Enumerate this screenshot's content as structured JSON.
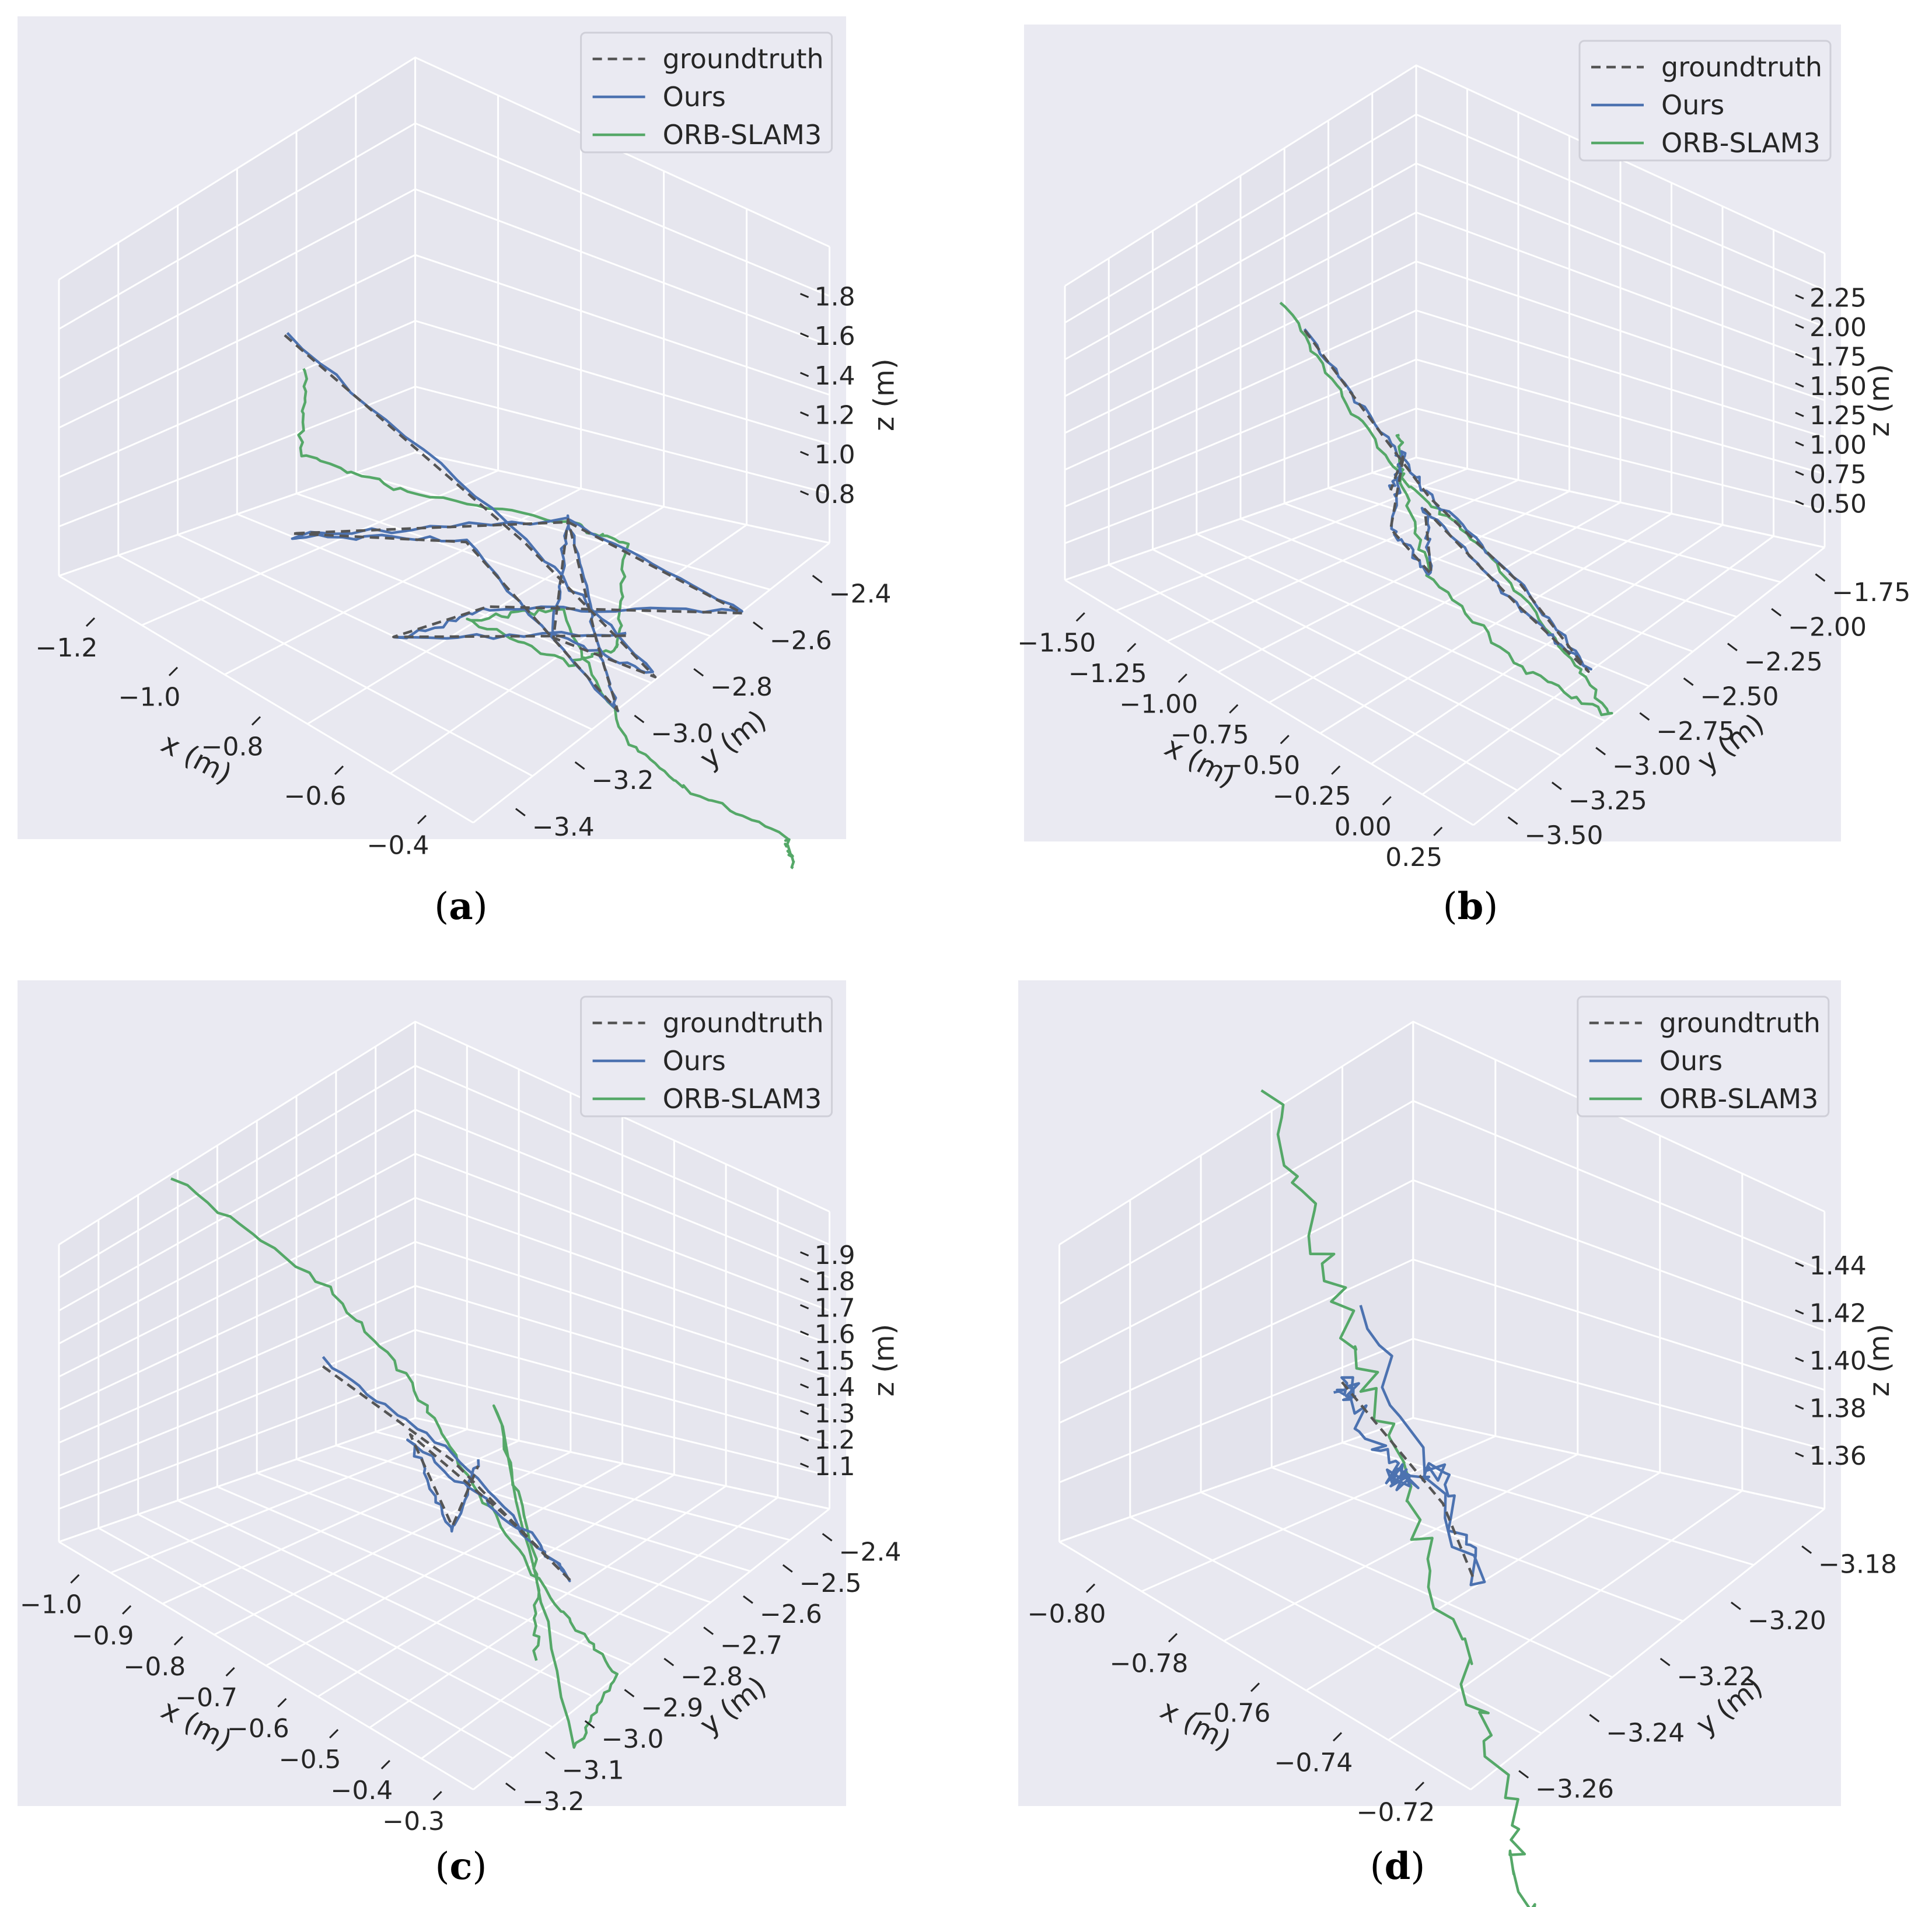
{
  "chart_data": [
    {
      "type": "line3d",
      "caption": "a",
      "grid": true,
      "legend": {
        "position": "top-right",
        "entries": [
          "groundtruth",
          "Ours",
          "ORB-SLAM3"
        ]
      },
      "xlabel": "x (m)",
      "ylabel": "y (m)",
      "zlabel": "z (m)",
      "x_ticks": [
        "−1.2",
        "−1.0",
        "−0.8",
        "−0.6",
        "−0.4"
      ],
      "y_ticks": [
        "−2.4",
        "−2.6",
        "−2.8",
        "−3.0",
        "−3.2",
        "−3.4"
      ],
      "z_ticks": [
        "1.8",
        "1.6",
        "1.4",
        "1.2",
        "1.0",
        "0.8"
      ],
      "xlim": [
        -1.3,
        -0.35
      ],
      "ylim": [
        -3.45,
        -2.35
      ],
      "zlim": [
        0.75,
        1.9
      ],
      "series": [
        {
          "name": "groundtruth",
          "color": "#555555",
          "dash": true,
          "points": [
            [
              -1.15,
              -2.9,
              1.62
            ],
            [
              -0.6,
              -2.9,
              1.37
            ],
            [
              -0.3,
              -2.9,
              1.15
            ],
            [
              -0.4,
              -2.7,
              1.28
            ],
            [
              -0.4,
              -2.75,
              1.72
            ],
            [
              -0.4,
              -2.85,
              1.2
            ],
            [
              -0.42,
              -2.95,
              0.88
            ],
            [
              -0.6,
              -2.7,
              1.45
            ],
            [
              -1.0,
              -2.7,
              1.08
            ],
            [
              -0.5,
              -2.9,
              1.55
            ],
            [
              -0.1,
              -2.9,
              1.6
            ],
            [
              -0.55,
              -2.7,
              1.25
            ],
            [
              -0.7,
              -2.6,
              1.02
            ],
            [
              -0.3,
              -2.8,
              1.35
            ]
          ]
        },
        {
          "name": "Ours",
          "color": "#4c72b0",
          "dash": false,
          "points": [
            [
              -1.15,
              -2.9,
              1.63
            ],
            [
              -0.6,
              -2.9,
              1.38
            ],
            [
              -0.3,
              -2.9,
              1.16
            ],
            [
              -0.4,
              -2.7,
              1.29
            ],
            [
              -0.4,
              -2.75,
              1.73
            ],
            [
              -0.4,
              -2.85,
              1.21
            ],
            [
              -0.42,
              -2.95,
              0.87
            ],
            [
              -0.6,
              -2.7,
              1.46
            ],
            [
              -1.0,
              -2.7,
              1.07
            ],
            [
              -0.5,
              -2.9,
              1.56
            ],
            [
              -0.1,
              -2.9,
              1.61
            ],
            [
              -0.55,
              -2.7,
              1.24
            ],
            [
              -0.7,
              -2.6,
              1.01
            ],
            [
              -0.3,
              -2.8,
              1.36
            ]
          ]
        },
        {
          "name": "ORB-SLAM3",
          "color": "#55a868",
          "dash": false,
          "points": [
            [
              -1.1,
              -2.9,
              1.55
            ],
            [
              -1.05,
              -2.8,
              1.3
            ],
            [
              -0.8,
              -2.8,
              1.4
            ],
            [
              -0.5,
              -2.9,
              1.55
            ],
            [
              -0.3,
              -2.8,
              1.7
            ],
            [
              -0.25,
              -2.7,
              1.4
            ],
            [
              -0.5,
              -2.9,
              1.0
            ],
            [
              -0.6,
              -2.7,
              1.15
            ],
            [
              -0.45,
              -2.8,
              1.3
            ],
            [
              -0.3,
              -2.8,
              0.95
            ],
            [
              -0.1,
              -2.7,
              1.0
            ],
            [
              0.2,
              -2.6,
              1.15
            ],
            [
              0.25,
              -2.55,
              1.1
            ]
          ]
        }
      ]
    },
    {
      "type": "line3d",
      "caption": "b",
      "grid": true,
      "legend": {
        "position": "top-right",
        "entries": [
          "groundtruth",
          "Ours",
          "ORB-SLAM3"
        ]
      },
      "xlabel": "x (m)",
      "ylabel": "y (m)",
      "zlabel": "z (m)",
      "x_ticks": [
        "−1.50",
        "−1.25",
        "−1.00",
        "−0.75",
        "−0.50",
        "−0.25",
        "0.00",
        "0.25"
      ],
      "y_ticks": [
        "−1.75",
        "−2.00",
        "−2.25",
        "−2.50",
        "−2.75",
        "−3.00",
        "−3.25",
        "−3.50"
      ],
      "z_ticks": [
        "2.25",
        "2.00",
        "1.75",
        "1.50",
        "1.25",
        "1.00",
        "0.75",
        "0.50"
      ],
      "xlim": [
        -1.6,
        0.3
      ],
      "ylim": [
        -3.55,
        -1.7
      ],
      "zlim": [
        0.4,
        2.3
      ],
      "series": [
        {
          "name": "groundtruth",
          "color": "#555555",
          "dash": true,
          "points": [
            [
              -1.2,
              -2.6,
              2.0
            ],
            [
              -0.9,
              -2.7,
              1.5
            ],
            [
              -0.7,
              -2.7,
              1.3
            ],
            [
              -0.2,
              -2.6,
              1.2
            ],
            [
              0.2,
              -2.5,
              1.0
            ],
            [
              -0.3,
              -2.7,
              0.95
            ],
            [
              -0.8,
              -2.8,
              1.1
            ],
            [
              -0.85,
              -2.9,
              0.6
            ],
            [
              -0.8,
              -2.6,
              1.05
            ],
            [
              -0.5,
              -2.3,
              1.9
            ],
            [
              -0.8,
              -2.6,
              1.3
            ]
          ]
        },
        {
          "name": "Ours",
          "color": "#4c72b0",
          "dash": false,
          "points": [
            [
              -1.2,
              -2.6,
              2.01
            ],
            [
              -0.9,
              -2.7,
              1.51
            ],
            [
              -0.7,
              -2.7,
              1.31
            ],
            [
              -0.2,
              -2.6,
              1.21
            ],
            [
              0.2,
              -2.5,
              1.01
            ],
            [
              -0.3,
              -2.7,
              0.94
            ],
            [
              -0.8,
              -2.8,
              1.11
            ],
            [
              -0.85,
              -2.9,
              0.59
            ],
            [
              -0.8,
              -2.6,
              1.06
            ],
            [
              -0.5,
              -2.3,
              1.91
            ],
            [
              -0.8,
              -2.6,
              1.31
            ]
          ]
        },
        {
          "name": "ORB-SLAM3",
          "color": "#55a868",
          "dash": false,
          "points": [
            [
              -1.3,
              -2.6,
              2.1
            ],
            [
              -1.1,
              -2.7,
              1.6
            ],
            [
              -0.8,
              -2.7,
              1.3
            ],
            [
              -0.4,
              -2.6,
              1.3
            ],
            [
              0.1,
              -2.5,
              1.05
            ],
            [
              0.3,
              -2.5,
              0.8
            ],
            [
              -0.2,
              -2.6,
              0.65
            ],
            [
              -0.7,
              -2.7,
              0.8
            ],
            [
              -0.75,
              -2.6,
              1.4
            ],
            [
              -0.6,
              -2.4,
              1.9
            ]
          ]
        }
      ]
    },
    {
      "type": "line3d",
      "caption": "c",
      "grid": true,
      "legend": {
        "position": "top-right",
        "entries": [
          "groundtruth",
          "Ours",
          "ORB-SLAM3"
        ]
      },
      "xlabel": "x (m)",
      "ylabel": "y (m)",
      "zlabel": "z (m)",
      "x_ticks": [
        "−1.0",
        "−0.9",
        "−0.8",
        "−0.7",
        "−0.6",
        "−0.5",
        "−0.4",
        "−0.3"
      ],
      "y_ticks": [
        "−2.4",
        "−2.5",
        "−2.6",
        "−2.7",
        "−2.8",
        "−2.9",
        "−3.0",
        "−3.1",
        "−3.2"
      ],
      "z_ticks": [
        "1.9",
        "1.8",
        "1.7",
        "1.6",
        "1.5",
        "1.4",
        "1.3",
        "1.2",
        "1.1"
      ],
      "xlim": [
        -1.05,
        -0.25
      ],
      "ylim": [
        -3.25,
        -2.35
      ],
      "zlim": [
        1.05,
        1.95
      ],
      "series": [
        {
          "name": "groundtruth",
          "color": "#555555",
          "dash": true,
          "points": [
            [
              -0.85,
              -2.8,
              1.6
            ],
            [
              -0.6,
              -2.8,
              1.55
            ],
            [
              -0.3,
              -2.7,
              1.5
            ],
            [
              -0.5,
              -2.8,
              1.48
            ],
            [
              -0.75,
              -2.9,
              1.45
            ],
            [
              -0.6,
              -2.8,
              1.35
            ],
            [
              -0.55,
              -2.8,
              1.58
            ]
          ]
        },
        {
          "name": "Ours",
          "color": "#4c72b0",
          "dash": false,
          "points": [
            [
              -0.85,
              -2.8,
              1.62
            ],
            [
              -0.6,
              -2.8,
              1.57
            ],
            [
              -0.3,
              -2.7,
              1.51
            ],
            [
              -0.5,
              -2.8,
              1.47
            ],
            [
              -0.75,
              -2.9,
              1.43
            ],
            [
              -0.6,
              -2.8,
              1.33
            ],
            [
              -0.55,
              -2.8,
              1.6
            ]
          ]
        },
        {
          "name": "ORB-SLAM3",
          "color": "#55a868",
          "dash": false,
          "points": [
            [
              -1.0,
              -2.6,
              2.1
            ],
            [
              -0.7,
              -2.6,
              2.05
            ],
            [
              -0.6,
              -2.7,
              1.8
            ],
            [
              -0.55,
              -2.8,
              1.5
            ],
            [
              -0.4,
              -2.8,
              1.3
            ],
            [
              -0.35,
              -2.9,
              1.1
            ],
            [
              -0.5,
              -3.0,
              0.7
            ],
            [
              -0.45,
              -2.7,
              1.9
            ],
            [
              -0.3,
              -2.6,
              1.6
            ],
            [
              -0.3,
              -2.6,
              1.3
            ]
          ]
        }
      ]
    },
    {
      "type": "line3d",
      "caption": "d",
      "grid": true,
      "legend": {
        "position": "top-right",
        "entries": [
          "groundtruth",
          "Ours",
          "ORB-SLAM3"
        ]
      },
      "xlabel": "x (m)",
      "ylabel": "y (m)",
      "zlabel": "z (m)",
      "x_ticks": [
        "−0.80",
        "−0.78",
        "−0.76",
        "−0.74",
        "−0.72"
      ],
      "y_ticks": [
        "−3.18",
        "−3.20",
        "−3.22",
        "−3.24",
        "−3.26"
      ],
      "z_ticks": [
        "1.44",
        "1.42",
        "1.40",
        "1.38",
        "1.36"
      ],
      "xlim": [
        -0.81,
        -0.71
      ],
      "ylim": [
        -3.27,
        -3.17
      ],
      "zlim": [
        1.35,
        1.45
      ],
      "series": [
        {
          "name": "groundtruth",
          "color": "#555555",
          "dash": true,
          "points": [
            [
              -0.78,
              -3.22,
              1.41
            ],
            [
              -0.76,
              -3.21,
              1.41
            ],
            [
              -0.74,
              -3.2,
              1.41
            ],
            [
              -0.74,
              -3.21,
              1.38
            ]
          ]
        },
        {
          "name": "Ours",
          "color": "#4c72b0",
          "dash": false,
          "points": [
            [
              -0.78,
              -3.22,
              1.41
            ],
            [
              -0.77,
              -3.21,
              1.42
            ],
            [
              -0.76,
              -3.21,
              1.4
            ],
            [
              -0.75,
              -3.2,
              1.41
            ],
            [
              -0.74,
              -3.2,
              1.42
            ],
            [
              -0.74,
              -3.21,
              1.38
            ],
            [
              -0.76,
              -3.2,
              1.46
            ]
          ]
        },
        {
          "name": "ORB-SLAM3",
          "color": "#55a868",
          "dash": false,
          "points": [
            [
              -0.82,
              -3.25,
              1.46
            ],
            [
              -0.79,
              -3.23,
              1.43
            ],
            [
              -0.76,
              -3.21,
              1.41
            ],
            [
              -0.73,
              -3.19,
              1.38
            ],
            [
              -0.7,
              -3.17,
              1.35
            ],
            [
              -0.68,
              -3.15,
              1.33
            ]
          ]
        }
      ]
    }
  ]
}
